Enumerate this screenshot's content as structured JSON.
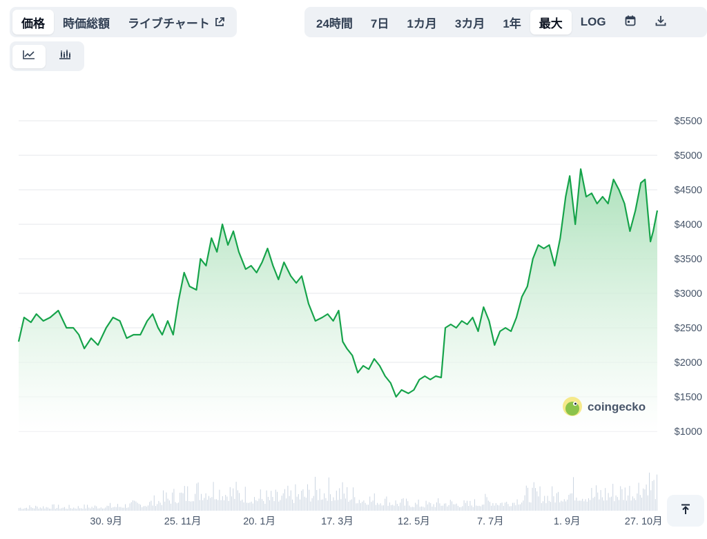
{
  "tabs": [
    {
      "label": "価格",
      "active": true
    },
    {
      "label": "時価総額",
      "active": false
    },
    {
      "label": "ライブチャート",
      "active": false
    }
  ],
  "ranges": [
    {
      "label": "24時間",
      "active": false
    },
    {
      "label": "7日",
      "active": false
    },
    {
      "label": "1カ月",
      "active": false
    },
    {
      "label": "3カ月",
      "active": false
    },
    {
      "label": "1年",
      "active": false
    },
    {
      "label": "最大",
      "active": true
    },
    {
      "label": "LOG",
      "active": false
    }
  ],
  "icons": {
    "external": "external-link-icon",
    "calendar": "calendar-icon",
    "download": "download-icon",
    "line": "line-chart-icon",
    "candle": "candlestick-icon",
    "top": "scroll-to-top-icon"
  },
  "watermark": "coingecko",
  "colors": {
    "line": "#16a34a",
    "area_top": "#bfe8c9",
    "volume": "#cbd5e1",
    "grid": "#e5e7eb"
  },
  "chart_data": {
    "type": "area",
    "y_ticks": [
      "$1000",
      "$1500",
      "$2000",
      "$2500",
      "$3000",
      "$3500",
      "$4000",
      "$4500",
      "$5000",
      "$5500"
    ],
    "y_tick_values": [
      1000,
      1500,
      2000,
      2500,
      3000,
      3500,
      4000,
      4500,
      5000,
      5500
    ],
    "ylim": [
      1000,
      5500
    ],
    "x_ticks": [
      "30. 9月",
      "25. 11月",
      "20. 1月",
      "17. 3月",
      "12. 5月",
      "7. 7月",
      "1. 9月",
      "27. 10月"
    ],
    "x_tick_dates": [
      "2023-09-30",
      "2023-11-25",
      "2024-01-20",
      "2024-03-17",
      "2024-05-12",
      "2024-07-07",
      "2024-09-01",
      "2024-10-27"
    ],
    "x_range": [
      "2023-07-28",
      "2024-11-06"
    ],
    "series": [
      {
        "values": [
          [
            "2023-07-28",
            2300
          ],
          [
            "2023-08-01",
            2650
          ],
          [
            "2023-08-06",
            2580
          ],
          [
            "2023-08-10",
            2700
          ],
          [
            "2023-08-15",
            2600
          ],
          [
            "2023-08-20",
            2650
          ],
          [
            "2023-08-26",
            2750
          ],
          [
            "2023-09-01",
            2500
          ],
          [
            "2023-09-06",
            2500
          ],
          [
            "2023-09-10",
            2400
          ],
          [
            "2023-09-14",
            2200
          ],
          [
            "2023-09-19",
            2350
          ],
          [
            "2023-09-24",
            2250
          ],
          [
            "2023-09-30",
            2500
          ],
          [
            "2023-10-05",
            2650
          ],
          [
            "2023-10-10",
            2600
          ],
          [
            "2023-10-15",
            2350
          ],
          [
            "2023-10-20",
            2400
          ],
          [
            "2023-10-25",
            2400
          ],
          [
            "2023-10-30",
            2600
          ],
          [
            "2023-11-03",
            2700
          ],
          [
            "2023-11-07",
            2500
          ],
          [
            "2023-11-10",
            2400
          ],
          [
            "2023-11-14",
            2600
          ],
          [
            "2023-11-18",
            2400
          ],
          [
            "2023-11-22",
            2900
          ],
          [
            "2023-11-26",
            3300
          ],
          [
            "2023-11-30",
            3100
          ],
          [
            "2023-12-05",
            3050
          ],
          [
            "2023-12-08",
            3500
          ],
          [
            "2023-12-12",
            3400
          ],
          [
            "2023-12-16",
            3800
          ],
          [
            "2023-12-20",
            3600
          ],
          [
            "2023-12-24",
            4000
          ],
          [
            "2023-12-28",
            3700
          ],
          [
            "2024-01-01",
            3900
          ],
          [
            "2024-01-05",
            3600
          ],
          [
            "2024-01-10",
            3350
          ],
          [
            "2024-01-14",
            3400
          ],
          [
            "2024-01-18",
            3300
          ],
          [
            "2024-01-22",
            3450
          ],
          [
            "2024-01-26",
            3650
          ],
          [
            "2024-01-30",
            3400
          ],
          [
            "2024-02-03",
            3200
          ],
          [
            "2024-02-07",
            3450
          ],
          [
            "2024-02-12",
            3250
          ],
          [
            "2024-02-16",
            3150
          ],
          [
            "2024-02-20",
            3250
          ],
          [
            "2024-02-25",
            2850
          ],
          [
            "2024-03-01",
            2600
          ],
          [
            "2024-03-06",
            2650
          ],
          [
            "2024-03-10",
            2700
          ],
          [
            "2024-03-14",
            2600
          ],
          [
            "2024-03-18",
            2750
          ],
          [
            "2024-03-21",
            2300
          ],
          [
            "2024-03-24",
            2200
          ],
          [
            "2024-03-28",
            2100
          ],
          [
            "2024-04-01",
            1850
          ],
          [
            "2024-04-05",
            1950
          ],
          [
            "2024-04-09",
            1900
          ],
          [
            "2024-04-13",
            2050
          ],
          [
            "2024-04-17",
            1950
          ],
          [
            "2024-04-21",
            1800
          ],
          [
            "2024-04-25",
            1700
          ],
          [
            "2024-04-29",
            1500
          ],
          [
            "2024-05-03",
            1600
          ],
          [
            "2024-05-08",
            1550
          ],
          [
            "2024-05-12",
            1600
          ],
          [
            "2024-05-16",
            1750
          ],
          [
            "2024-05-20",
            1800
          ],
          [
            "2024-05-24",
            1750
          ],
          [
            "2024-05-28",
            1800
          ],
          [
            "2024-06-01",
            1780
          ],
          [
            "2024-06-04",
            2500
          ],
          [
            "2024-06-08",
            2550
          ],
          [
            "2024-06-12",
            2500
          ],
          [
            "2024-06-16",
            2600
          ],
          [
            "2024-06-20",
            2550
          ],
          [
            "2024-06-24",
            2650
          ],
          [
            "2024-06-28",
            2450
          ],
          [
            "2024-07-02",
            2800
          ],
          [
            "2024-07-06",
            2600
          ],
          [
            "2024-07-10",
            2250
          ],
          [
            "2024-07-14",
            2450
          ],
          [
            "2024-07-18",
            2500
          ],
          [
            "2024-07-22",
            2450
          ],
          [
            "2024-07-26",
            2650
          ],
          [
            "2024-07-30",
            2950
          ],
          [
            "2024-08-03",
            3100
          ],
          [
            "2024-08-07",
            3500
          ],
          [
            "2024-08-11",
            3700
          ],
          [
            "2024-08-15",
            3650
          ],
          [
            "2024-08-19",
            3700
          ],
          [
            "2024-08-23",
            3400
          ],
          [
            "2024-08-27",
            3800
          ],
          [
            "2024-08-31",
            4400
          ],
          [
            "2024-09-03",
            4700
          ],
          [
            "2024-09-07",
            4000
          ],
          [
            "2024-09-11",
            4800
          ],
          [
            "2024-09-15",
            4400
          ],
          [
            "2024-09-19",
            4450
          ],
          [
            "2024-09-23",
            4300
          ],
          [
            "2024-09-27",
            4400
          ],
          [
            "2024-10-01",
            4300
          ],
          [
            "2024-10-05",
            4650
          ],
          [
            "2024-10-09",
            4500
          ],
          [
            "2024-10-13",
            4300
          ],
          [
            "2024-10-17",
            3900
          ],
          [
            "2024-10-21",
            4200
          ],
          [
            "2024-10-25",
            4600
          ],
          [
            "2024-10-28",
            4650
          ],
          [
            "2024-10-30",
            4200
          ],
          [
            "2024-11-01",
            3750
          ],
          [
            "2024-11-03",
            3900
          ],
          [
            "2024-11-06",
            4200
          ]
        ]
      }
    ],
    "volume": [
      [
        "2023-07-28",
        0.08
      ],
      [
        "2023-08-15",
        0.1
      ],
      [
        "2023-09-01",
        0.08
      ],
      [
        "2023-09-20",
        0.1
      ],
      [
        "2023-10-10",
        0.12
      ],
      [
        "2023-10-30",
        0.18
      ],
      [
        "2023-11-15",
        0.32
      ],
      [
        "2023-12-01",
        0.45
      ],
      [
        "2023-12-15",
        0.55
      ],
      [
        "2024-01-01",
        0.45
      ],
      [
        "2024-01-15",
        0.35
      ],
      [
        "2024-02-01",
        0.3
      ],
      [
        "2024-02-20",
        0.4
      ],
      [
        "2024-03-05",
        0.5
      ],
      [
        "2024-03-20",
        0.45
      ],
      [
        "2024-04-05",
        0.3
      ],
      [
        "2024-04-20",
        0.25
      ],
      [
        "2024-05-05",
        0.18
      ],
      [
        "2024-05-20",
        0.15
      ],
      [
        "2024-06-05",
        0.2
      ],
      [
        "2024-06-20",
        0.15
      ],
      [
        "2024-07-05",
        0.25
      ],
      [
        "2024-07-20",
        0.2
      ],
      [
        "2024-08-05",
        0.4
      ],
      [
        "2024-08-20",
        0.35
      ],
      [
        "2024-09-05",
        0.5
      ],
      [
        "2024-09-20",
        0.4
      ],
      [
        "2024-10-05",
        0.45
      ],
      [
        "2024-10-20",
        0.5
      ],
      [
        "2024-10-30",
        0.75
      ],
      [
        "2024-11-06",
        0.5
      ]
    ]
  }
}
